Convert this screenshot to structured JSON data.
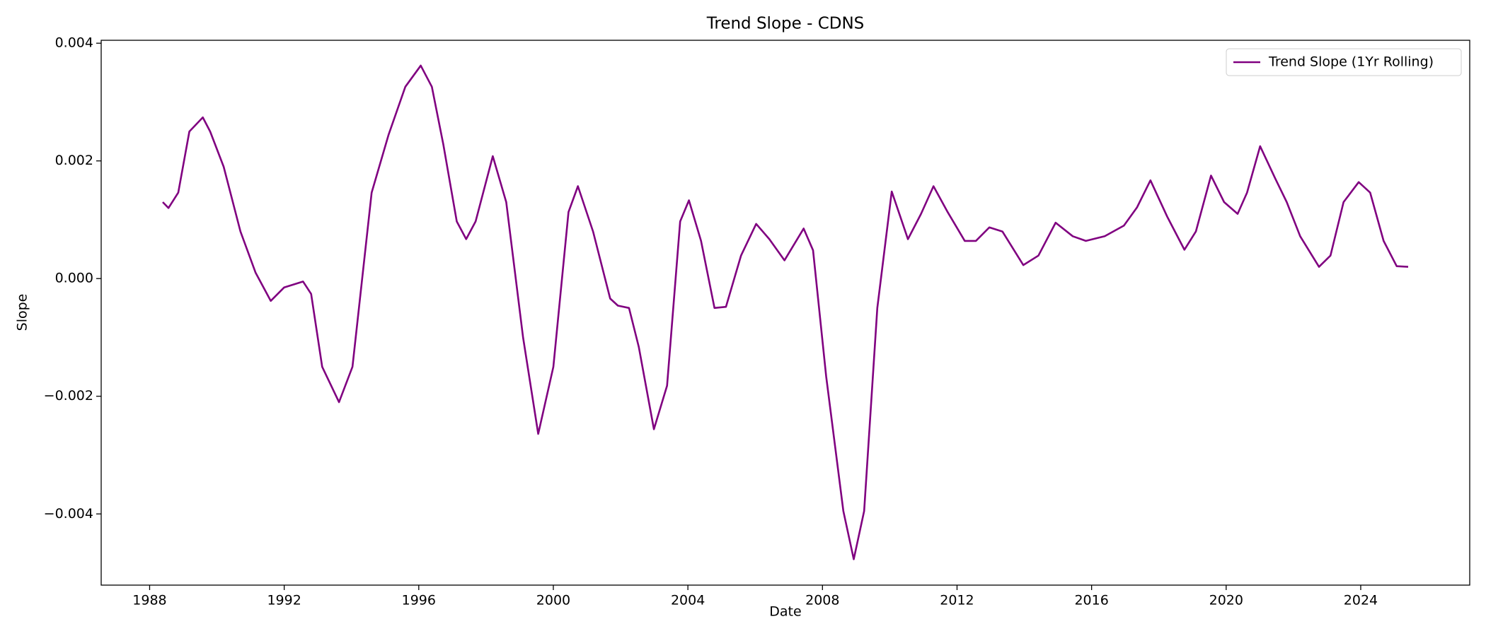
{
  "chart_data": {
    "type": "line",
    "title": "Trend Slope - CDNS",
    "xlabel": "Date",
    "ylabel": "Slope",
    "x": [
      1988.39,
      1988.56,
      1988.85,
      1989.18,
      1989.58,
      1989.8,
      1990.2,
      1990.7,
      1991.15,
      1991.6,
      1992.0,
      1992.56,
      1992.8,
      1993.13,
      1993.63,
      1994.03,
      1994.6,
      1995.1,
      1995.6,
      1996.06,
      1996.39,
      1996.73,
      1997.13,
      1997.41,
      1997.69,
      1998.2,
      1998.6,
      1999.1,
      1999.55,
      2000.0,
      2000.45,
      2000.73,
      2001.18,
      2001.69,
      2001.92,
      2002.25,
      2002.54,
      2002.99,
      2003.38,
      2003.77,
      2004.03,
      2004.39,
      2004.79,
      2005.13,
      2005.58,
      2006.03,
      2006.42,
      2006.87,
      2007.44,
      2007.72,
      2008.11,
      2008.62,
      2008.93,
      2009.24,
      2009.63,
      2010.06,
      2010.54,
      2010.93,
      2011.3,
      2011.72,
      2012.23,
      2012.56,
      2012.96,
      2013.35,
      2013.97,
      2014.42,
      2014.93,
      2015.44,
      2015.83,
      2016.39,
      2016.96,
      2017.35,
      2017.75,
      2018.25,
      2018.76,
      2019.1,
      2019.55,
      2019.94,
      2020.34,
      2020.62,
      2021.01,
      2021.46,
      2021.8,
      2022.2,
      2022.76,
      2023.1,
      2023.49,
      2023.94,
      2024.28,
      2024.68,
      2025.07,
      2025.41
    ],
    "series": [
      {
        "name": "Trend Slope (1Yr Rolling)",
        "color": "#800080",
        "values": [
          0.0013,
          0.0012,
          0.00146,
          0.0025,
          0.00274,
          0.0025,
          0.0019,
          0.0008,
          0.0001,
          -0.00038,
          -0.00015,
          -5e-05,
          -0.00026,
          -0.0015,
          -0.0021,
          -0.0015,
          0.00146,
          0.00244,
          0.00326,
          0.00362,
          0.00326,
          0.00228,
          0.00097,
          0.00067,
          0.00097,
          0.00208,
          0.0013,
          -0.001,
          -0.00264,
          -0.0015,
          0.00113,
          0.00157,
          0.0008,
          -0.00034,
          -0.00046,
          -0.0005,
          -0.00116,
          -0.00256,
          -0.00182,
          0.00097,
          0.00133,
          0.00064,
          -0.0005,
          -0.00048,
          0.00039,
          0.00093,
          0.00067,
          0.00031,
          0.00085,
          0.00048,
          -0.00166,
          -0.00395,
          -0.00477,
          -0.00395,
          -0.0005,
          0.00148,
          0.00067,
          0.0011,
          0.00157,
          0.00113,
          0.00064,
          0.00064,
          0.00087,
          0.0008,
          0.00023,
          0.00039,
          0.00095,
          0.00072,
          0.00064,
          0.00072,
          0.0009,
          0.00121,
          0.00167,
          0.00105,
          0.00049,
          0.0008,
          0.00175,
          0.0013,
          0.0011,
          0.00146,
          0.00225,
          0.0017,
          0.0013,
          0.00072,
          0.0002,
          0.00039,
          0.0013,
          0.00164,
          0.00146,
          0.00064,
          0.00021,
          0.0002
        ]
      }
    ],
    "xlim": [
      1986.56,
      2027.24
    ],
    "ylim": [
      -0.00521,
      0.00405
    ],
    "xticks": [
      1988,
      1992,
      1996,
      2000,
      2004,
      2008,
      2012,
      2016,
      2020,
      2024
    ],
    "yticks": [
      {
        "value": -0.004,
        "label": "−0.004"
      },
      {
        "value": -0.002,
        "label": "−0.002"
      },
      {
        "value": 0,
        "label": "0.000"
      },
      0.002,
      0.004
    ],
    "legend": "upper right"
  }
}
